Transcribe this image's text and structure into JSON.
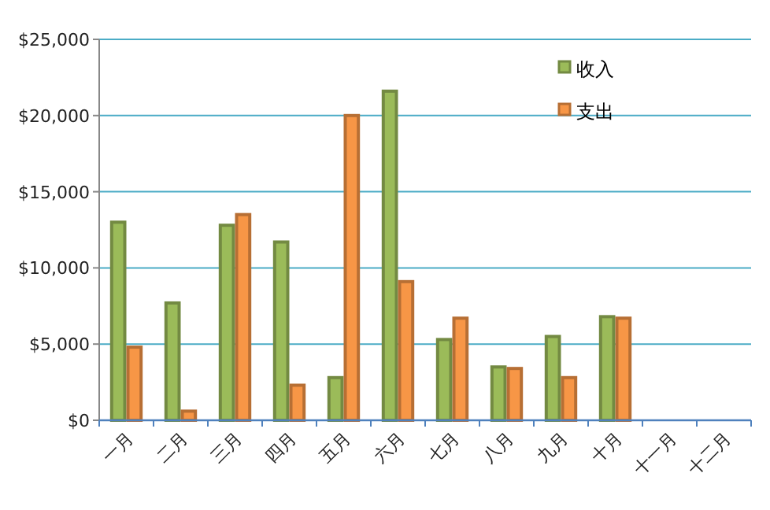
{
  "chart_data": {
    "type": "bar",
    "categories": [
      "一月",
      "二月",
      "三月",
      "四月",
      "五月",
      "六月",
      "七月",
      "八月",
      "九月",
      "十月",
      "十一月",
      "十二月"
    ],
    "series": [
      {
        "name": "收入",
        "color": "#9bbb59",
        "values": [
          13000,
          7700,
          12800,
          11700,
          2800,
          21600,
          5300,
          3500,
          5500,
          6800,
          null,
          null
        ]
      },
      {
        "name": "支出",
        "color": "#f79646",
        "values": [
          4800,
          600,
          13500,
          2300,
          20000,
          9100,
          6700,
          3400,
          2800,
          6700,
          null,
          null
        ]
      }
    ],
    "ylim": [
      0,
      25000
    ],
    "yticks": [
      {
        "value": 0,
        "label": "$0"
      },
      {
        "value": 5000,
        "label": "$5,000"
      },
      {
        "value": 10000,
        "label": "$10,000"
      },
      {
        "value": 15000,
        "label": "$15,000"
      },
      {
        "value": 20000,
        "label": "$20,000"
      },
      {
        "value": 25000,
        "label": "$25,000"
      }
    ],
    "grid": "y",
    "legend": "top right"
  }
}
